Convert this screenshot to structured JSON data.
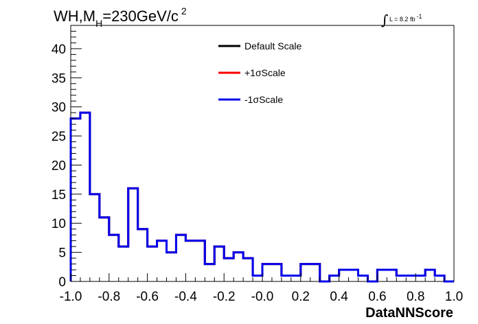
{
  "chart_data": {
    "type": "step-histogram",
    "title": {
      "main": "WH,M",
      "subscript": "H",
      "rest": "=230GeV/c",
      "superscript": "2"
    },
    "luminosity": {
      "symbol": "∫",
      "text": "L = 8.2 fb",
      "superscript": "-1"
    },
    "xlabel": "DataNNScore",
    "ylabel": "",
    "xlim": [
      -1.0,
      1.0
    ],
    "ylim": [
      0,
      44
    ],
    "x_ticks": [
      "-1.0",
      "-0.8",
      "-0.6",
      "-0.4",
      "-0.2",
      "-0.0",
      "0.2",
      "0.4",
      "0.6",
      "0.8",
      "1.0"
    ],
    "x_tick_values": [
      -1.0,
      -0.8,
      -0.6,
      -0.4,
      -0.2,
      0.0,
      0.2,
      0.4,
      0.6,
      0.8,
      1.0
    ],
    "y_ticks": [
      "0",
      "5",
      "10",
      "15",
      "20",
      "25",
      "30",
      "35",
      "40"
    ],
    "y_tick_values": [
      0,
      5,
      10,
      15,
      20,
      25,
      30,
      35,
      40
    ],
    "bin_edges": [
      -1.0,
      -0.95,
      -0.9,
      -0.85,
      -0.8,
      -0.75,
      -0.7,
      -0.65,
      -0.6,
      -0.55,
      -0.5,
      -0.45,
      -0.4,
      -0.35,
      -0.3,
      -0.25,
      -0.2,
      -0.15,
      -0.1,
      -0.05,
      0.0,
      0.05,
      0.1,
      0.15,
      0.2,
      0.25,
      0.3,
      0.35,
      0.4,
      0.45,
      0.5,
      0.55,
      0.6,
      0.65,
      0.7,
      0.75,
      0.8,
      0.85,
      0.9,
      0.95,
      1.0
    ],
    "series": [
      {
        "name": "Default Scale",
        "color": "#000000",
        "values": [
          28,
          29,
          15,
          11,
          8,
          6,
          16,
          9,
          6,
          7,
          5,
          8,
          7,
          7,
          3,
          6,
          4,
          5,
          4,
          1,
          3,
          3,
          1,
          1,
          3,
          3,
          0,
          1,
          2,
          2,
          1,
          0,
          2,
          2,
          1,
          1,
          1,
          2,
          1,
          0
        ]
      },
      {
        "name": "+1σScale",
        "color": "#ff0000",
        "values": [
          28,
          29,
          15,
          11,
          8,
          6,
          16,
          9,
          6,
          7,
          5,
          8,
          7,
          7,
          3,
          6,
          4,
          5,
          4,
          1,
          3,
          3,
          1,
          1,
          3,
          3,
          0,
          1,
          2,
          2,
          1,
          0,
          2,
          2,
          1,
          1,
          1,
          2,
          1,
          0
        ]
      },
      {
        "name": "-1σScale",
        "color": "#0000ee",
        "values": [
          28,
          29,
          15,
          11,
          8,
          6,
          16,
          9,
          6,
          7,
          5,
          8,
          7,
          7,
          3,
          6,
          4,
          5,
          4,
          1,
          3,
          3,
          1,
          1,
          3,
          3,
          0,
          1,
          2,
          2,
          1,
          0,
          2,
          2,
          1,
          1,
          1,
          2,
          1,
          0
        ]
      }
    ],
    "legend_position": "top-center",
    "grid": false
  }
}
